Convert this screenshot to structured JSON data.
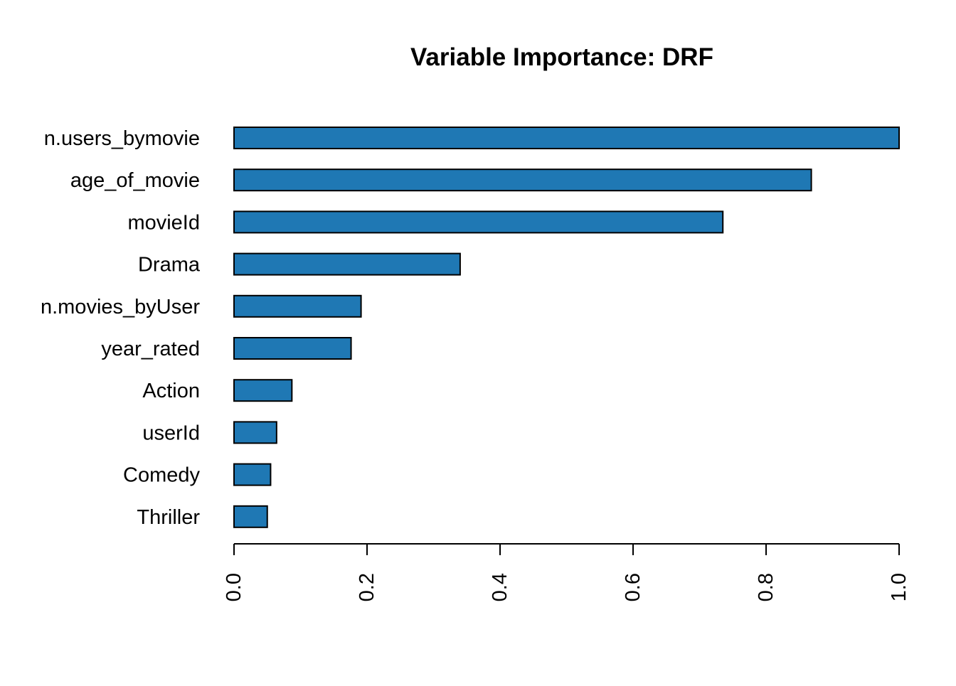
{
  "chart_data": {
    "type": "bar",
    "orientation": "horizontal",
    "title": "Variable Importance: DRF",
    "xlabel": "",
    "ylabel": "",
    "categories": [
      "n.users_bymovie",
      "age_of_movie",
      "movieId",
      "Drama",
      "n.movies_byUser",
      "year_rated",
      "Action",
      "userId",
      "Comedy",
      "Thriller"
    ],
    "values": [
      1.0,
      0.868,
      0.735,
      0.34,
      0.191,
      0.176,
      0.087,
      0.064,
      0.055,
      0.05
    ],
    "xlim": [
      0,
      1
    ],
    "ticks": [
      "0.0",
      "0.2",
      "0.4",
      "0.6",
      "0.8",
      "1.0"
    ],
    "tick_values": [
      0,
      0.2,
      0.4,
      0.6,
      0.8,
      1.0
    ],
    "bar_color": "#1f78b4",
    "grid": false,
    "legend": "none"
  }
}
